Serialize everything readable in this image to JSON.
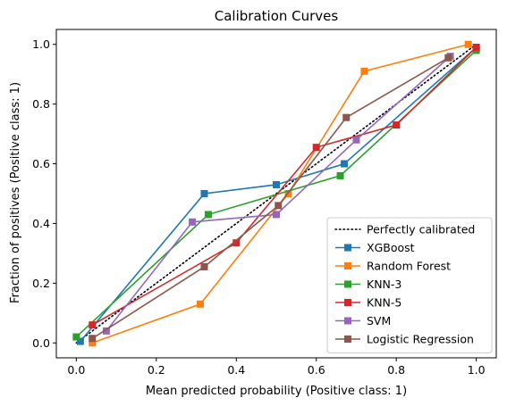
{
  "chart_data": {
    "type": "line",
    "title": "Calibration Curves",
    "xlabel": "Mean predicted probability (Positive class: 1)",
    "ylabel": "Fraction of positives (Positive class: 1)",
    "xlim": [
      -0.05,
      1.05
    ],
    "ylim": [
      -0.05,
      1.05
    ],
    "xticks": [
      "0.0",
      "0.2",
      "0.4",
      "0.6",
      "0.8",
      "1.0"
    ],
    "yticks": [
      "0.0",
      "0.2",
      "0.4",
      "0.6",
      "0.8",
      "1.0"
    ],
    "grid": false,
    "legend_position": "lower-right",
    "reference": {
      "name": "Perfectly calibrated",
      "color": "#000000",
      "style": "dotted",
      "x": [
        0,
        1
      ],
      "y": [
        0,
        1
      ]
    },
    "series": [
      {
        "name": "XGBoost",
        "color": "#1f77b4",
        "x": [
          0.01,
          0.32,
          0.5,
          0.67,
          1.0
        ],
        "y": [
          0.005,
          0.5,
          0.53,
          0.6,
          0.99
        ]
      },
      {
        "name": "Random Forest",
        "color": "#ff7f0e",
        "x": [
          0.04,
          0.31,
          0.53,
          0.72,
          0.98
        ],
        "y": [
          0.0,
          0.13,
          0.5,
          0.91,
          1.0
        ]
      },
      {
        "name": "KNN-3",
        "color": "#2ca02c",
        "x": [
          0.0,
          0.33,
          0.66,
          1.0
        ],
        "y": [
          0.02,
          0.43,
          0.56,
          0.98
        ]
      },
      {
        "name": "KNN-5",
        "color": "#d62728",
        "x": [
          0.04,
          0.4,
          0.6,
          0.8,
          1.0
        ],
        "y": [
          0.06,
          0.335,
          0.655,
          0.73,
          0.99
        ]
      },
      {
        "name": "SVM",
        "color": "#9467bd",
        "x": [
          0.075,
          0.29,
          0.5,
          0.7,
          0.935
        ],
        "y": [
          0.04,
          0.405,
          0.43,
          0.68,
          0.96
        ]
      },
      {
        "name": "Logistic Regression",
        "color": "#8c564b",
        "x": [
          0.04,
          0.32,
          0.505,
          0.675,
          0.93
        ],
        "y": [
          0.015,
          0.255,
          0.46,
          0.755,
          0.955
        ]
      }
    ]
  }
}
